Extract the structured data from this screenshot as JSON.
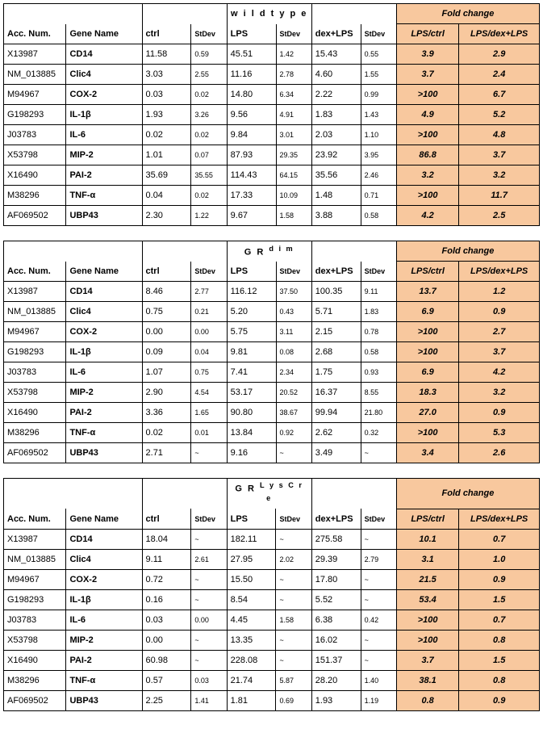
{
  "columns": {
    "acc": "Acc. Num.",
    "gene": "Gene Name",
    "ctrl": "ctrl",
    "stdev": "StDev",
    "lps": "LPS",
    "dexlps": "dex+LPS",
    "fold": "Fold change",
    "fold1": "LPS/ctrl",
    "fold2": "LPS/dex+LPS"
  },
  "colors": {
    "fold_bg": "#f8c89e",
    "border": "#000000",
    "bg": "#ffffff"
  },
  "tables": [
    {
      "title": "w i l d    t y p e",
      "rows": [
        {
          "acc": "X13987",
          "gene": "CD14",
          "ctrl": "11.58",
          "sd1": "0.59",
          "lps": "45.51",
          "sd2": "1.42",
          "dex": "15.43",
          "sd3": "0.55",
          "f1": "3.9",
          "f2": "2.9"
        },
        {
          "acc": "NM_013885",
          "gene": "Clic4",
          "ctrl": "3.03",
          "sd1": "2.55",
          "lps": "11.16",
          "sd2": "2.78",
          "dex": "4.60",
          "sd3": "1.55",
          "f1": "3.7",
          "f2": "2.4"
        },
        {
          "acc": "M94967",
          "gene": "COX-2",
          "ctrl": "0.03",
          "sd1": "0.02",
          "lps": "14.80",
          "sd2": "6.34",
          "dex": "2.22",
          "sd3": "0.99",
          "f1": ">100",
          "f2": "6.7"
        },
        {
          "acc": "G198293",
          "gene": "IL-1β",
          "ctrl": "1.93",
          "sd1": "3.26",
          "lps": "9.56",
          "sd2": "4.91",
          "dex": "1.83",
          "sd3": "1.43",
          "f1": "4.9",
          "f2": "5.2"
        },
        {
          "acc": "J03783",
          "gene": "IL-6",
          "ctrl": "0.02",
          "sd1": "0.02",
          "lps": "9.84",
          "sd2": "3.01",
          "dex": "2.03",
          "sd3": "1.10",
          "f1": ">100",
          "f2": "4.8"
        },
        {
          "acc": "X53798",
          "gene": "MIP-2",
          "ctrl": "1.01",
          "sd1": "0.07",
          "lps": "87.93",
          "sd2": "29.35",
          "dex": "23.92",
          "sd3": "3.95",
          "f1": "86.8",
          "f2": "3.7"
        },
        {
          "acc": "X16490",
          "gene": "PAI-2",
          "ctrl": "35.69",
          "sd1": "35.55",
          "lps": "114.43",
          "sd2": "64.15",
          "dex": "35.56",
          "sd3": "2.46",
          "f1": "3.2",
          "f2": "3.2"
        },
        {
          "acc": "M38296",
          "gene": "TNF-α",
          "ctrl": "0.04",
          "sd1": "0.02",
          "lps": "17.33",
          "sd2": "10.09",
          "dex": "1.48",
          "sd3": "0.71",
          "f1": ">100",
          "f2": "11.7"
        },
        {
          "acc": "AF069502",
          "gene": "UBP43",
          "ctrl": "2.30",
          "sd1": "1.22",
          "lps": "9.67",
          "sd2": "1.58",
          "dex": "3.88",
          "sd3": "0.58",
          "f1": "4.2",
          "f2": "2.5"
        }
      ]
    },
    {
      "title_html": "G R <sup>d i m</sup>",
      "rows": [
        {
          "acc": "X13987",
          "gene": "CD14",
          "ctrl": "8.46",
          "sd1": "2.77",
          "lps": "116.12",
          "sd2": "37.50",
          "dex": "100.35",
          "sd3": "9.11",
          "f1": "13.7",
          "f2": "1.2"
        },
        {
          "acc": "NM_013885",
          "gene": "Clic4",
          "ctrl": "0.75",
          "sd1": "0.21",
          "lps": "5.20",
          "sd2": "0.43",
          "dex": "5.71",
          "sd3": "1.83",
          "f1": "6.9",
          "f2": "0.9"
        },
        {
          "acc": "M94967",
          "gene": "COX-2",
          "ctrl": "0.00",
          "sd1": "0.00",
          "lps": "5.75",
          "sd2": "3.11",
          "dex": "2.15",
          "sd3": "0.78",
          "f1": ">100",
          "f2": "2.7"
        },
        {
          "acc": "G198293",
          "gene": "IL-1β",
          "ctrl": "0.09",
          "sd1": "0.04",
          "lps": "9.81",
          "sd2": "0.08",
          "dex": "2.68",
          "sd3": "0.58",
          "f1": ">100",
          "f2": "3.7"
        },
        {
          "acc": "J03783",
          "gene": "IL-6",
          "ctrl": "1.07",
          "sd1": "0.75",
          "lps": "7.41",
          "sd2": "2.34",
          "dex": "1.75",
          "sd3": "0.93",
          "f1": "6.9",
          "f2": "4.2"
        },
        {
          "acc": "X53798",
          "gene": "MIP-2",
          "ctrl": "2.90",
          "sd1": "4.54",
          "lps": "53.17",
          "sd2": "20.52",
          "dex": "16.37",
          "sd3": "8.55",
          "f1": "18.3",
          "f2": "3.2"
        },
        {
          "acc": "X16490",
          "gene": "PAI-2",
          "ctrl": "3.36",
          "sd1": "1.65",
          "lps": "90.80",
          "sd2": "38.67",
          "dex": "99.94",
          "sd3": "21.80",
          "f1": "27.0",
          "f2": "0.9"
        },
        {
          "acc": "M38296",
          "gene": "TNF-α",
          "ctrl": "0.02",
          "sd1": "0.01",
          "lps": "13.84",
          "sd2": "0.92",
          "dex": "2.62",
          "sd3": "0.32",
          "f1": ">100",
          "f2": "5.3"
        },
        {
          "acc": "AF069502",
          "gene": "UBP43",
          "ctrl": "2.71",
          "sd1": "~",
          "lps": "9.16",
          "sd2": "~",
          "dex": "3.49",
          "sd3": "~",
          "f1": "3.4",
          "f2": "2.6"
        }
      ]
    },
    {
      "title_html": "G R <sup>L y s C r e</sup>",
      "rows": [
        {
          "acc": "X13987",
          "gene": "CD14",
          "ctrl": "18.04",
          "sd1": "~",
          "lps": "182.11",
          "sd2": "~",
          "dex": "275.58",
          "sd3": "~",
          "f1": "10.1",
          "f2": "0.7"
        },
        {
          "acc": "NM_013885",
          "gene": "Clic4",
          "ctrl": "9.11",
          "sd1": "2.61",
          "lps": "27.95",
          "sd2": "2.02",
          "dex": "29.39",
          "sd3": "2.79",
          "f1": "3.1",
          "f2": "1.0"
        },
        {
          "acc": "M94967",
          "gene": "COX-2",
          "ctrl": "0.72",
          "sd1": "~",
          "lps": "15.50",
          "sd2": "~",
          "dex": "17.80",
          "sd3": "~",
          "f1": "21.5",
          "f2": "0.9"
        },
        {
          "acc": "G198293",
          "gene": "IL-1β",
          "ctrl": "0.16",
          "sd1": "~",
          "lps": "8.54",
          "sd2": "~",
          "dex": "5.52",
          "sd3": "~",
          "f1": "53.4",
          "f2": "1.5"
        },
        {
          "acc": "J03783",
          "gene": "IL-6",
          "ctrl": "0.03",
          "sd1": "0.00",
          "lps": "4.45",
          "sd2": "1.58",
          "dex": "6.38",
          "sd3": "0.42",
          "f1": ">100",
          "f2": "0.7"
        },
        {
          "acc": "X53798",
          "gene": "MIP-2",
          "ctrl": "0.00",
          "sd1": "~",
          "lps": "13.35",
          "sd2": "~",
          "dex": "16.02",
          "sd3": "~",
          "f1": ">100",
          "f2": "0.8"
        },
        {
          "acc": "X16490",
          "gene": "PAI-2",
          "ctrl": "60.98",
          "sd1": "~",
          "lps": "228.08",
          "sd2": "~",
          "dex": "151.37",
          "sd3": "~",
          "f1": "3.7",
          "f2": "1.5"
        },
        {
          "acc": "M38296",
          "gene": "TNF-α",
          "ctrl": "0.57",
          "sd1": "0.03",
          "lps": "21.74",
          "sd2": "5.87",
          "dex": "28.20",
          "sd3": "1.40",
          "f1": "38.1",
          "f2": "0.8"
        },
        {
          "acc": "AF069502",
          "gene": "UBP43",
          "ctrl": "2.25",
          "sd1": "1.41",
          "lps": "1.81",
          "sd2": "0.69",
          "dex": "1.93",
          "sd3": "1.19",
          "f1": "0.8",
          "f2": "0.9"
        }
      ]
    }
  ]
}
